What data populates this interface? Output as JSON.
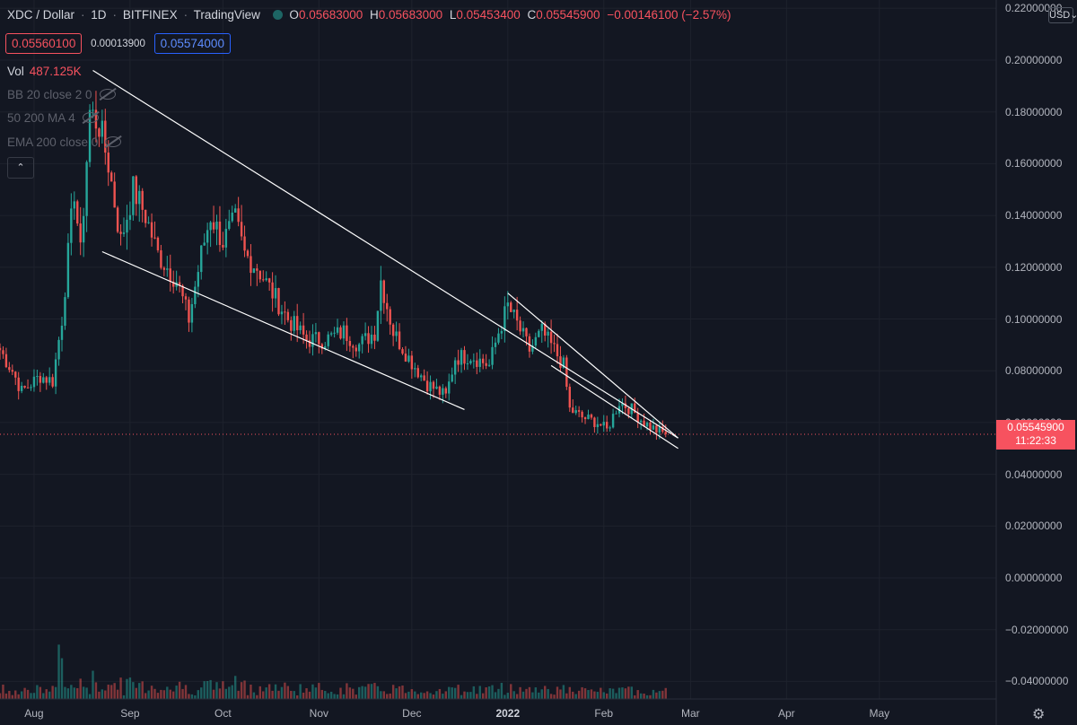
{
  "header": {
    "symbol": "XDC / Dollar",
    "interval": "1D",
    "exchange": "BITFINEX",
    "source": "TradingView",
    "o_label": "O",
    "o_value": "0.05683000",
    "h_label": "H",
    "h_value": "0.05683000",
    "l_label": "L",
    "l_value": "0.05453400",
    "c_label": "C",
    "c_value": "0.05545900",
    "change": "−0.00146100 (−2.57%)"
  },
  "quote": {
    "bid": "0.05560100",
    "spread": "0.00013900",
    "ask": "0.05574000"
  },
  "indicators": {
    "vol_label": "Vol",
    "vol_value": "487.125K",
    "bb": "BB 20 close 2 0",
    "ma": "50 200 MA 4",
    "ema": "EMA 200 close 0"
  },
  "controls": {
    "collapse_icon": "chevron-up-icon",
    "currency": "USD",
    "settings_icon": "gear-icon"
  },
  "current_price": {
    "value": "0.05545900",
    "countdown": "11:22:33"
  },
  "colors": {
    "background": "#131722",
    "up": "#26a69a",
    "down": "#ef5350",
    "trendline": "#ffffff"
  },
  "chart_data": {
    "type": "candlestick",
    "title": "XDC / Dollar · 1D · BITFINEX",
    "y_axis": {
      "ticks": [
        "0.22000000",
        "0.20000000",
        "0.18000000",
        "0.16000000",
        "0.14000000",
        "0.12000000",
        "0.10000000",
        "0.08000000",
        "0.06000000",
        "0.04000000",
        "0.02000000",
        "0.00000000",
        "−0.02000000",
        "−0.04000000"
      ],
      "ylim": [
        -0.045,
        0.22
      ]
    },
    "x_axis": {
      "ticks": [
        "Aug",
        "Sep",
        "Oct",
        "Nov",
        "Dec",
        "2022",
        "Feb",
        "Mar",
        "Apr",
        "May"
      ],
      "range": [
        "2021-07-21",
        "2022-05-31"
      ]
    },
    "grid": true,
    "price_anchors": [
      [
        "2021-07-21",
        0.088
      ],
      [
        "2021-07-25",
        0.08
      ],
      [
        "2021-07-28",
        0.072
      ],
      [
        "2021-08-03",
        0.078
      ],
      [
        "2021-08-07",
        0.076
      ],
      [
        "2021-08-10",
        0.1
      ],
      [
        "2021-08-14",
        0.15
      ],
      [
        "2021-08-16",
        0.125
      ],
      [
        "2021-08-19",
        0.18
      ],
      [
        "2021-08-22",
        0.175
      ],
      [
        "2021-08-25",
        0.16
      ],
      [
        "2021-08-29",
        0.13
      ],
      [
        "2021-09-02",
        0.15
      ],
      [
        "2021-09-06",
        0.14
      ],
      [
        "2021-09-10",
        0.125
      ],
      [
        "2021-09-16",
        0.115
      ],
      [
        "2021-09-20",
        0.1
      ],
      [
        "2021-09-24",
        0.125
      ],
      [
        "2021-09-27",
        0.14
      ],
      [
        "2021-10-01",
        0.13
      ],
      [
        "2021-10-05",
        0.138
      ],
      [
        "2021-10-08",
        0.125
      ],
      [
        "2021-10-12",
        0.12
      ],
      [
        "2021-10-18",
        0.108
      ],
      [
        "2021-10-22",
        0.1
      ],
      [
        "2021-10-28",
        0.092
      ],
      [
        "2021-11-03",
        0.092
      ],
      [
        "2021-11-09",
        0.095
      ],
      [
        "2021-11-14",
        0.09
      ],
      [
        "2021-11-19",
        0.095
      ],
      [
        "2021-11-21",
        0.115
      ],
      [
        "2021-11-25",
        0.095
      ],
      [
        "2021-11-30",
        0.085
      ],
      [
        "2021-12-06",
        0.075
      ],
      [
        "2021-12-12",
        0.07
      ],
      [
        "2021-12-15",
        0.085
      ],
      [
        "2021-12-20",
        0.086
      ],
      [
        "2021-12-26",
        0.082
      ],
      [
        "2021-12-29",
        0.095
      ],
      [
        "2022-01-01",
        0.105
      ],
      [
        "2022-01-04",
        0.098
      ],
      [
        "2022-01-08",
        0.088
      ],
      [
        "2022-01-12",
        0.095
      ],
      [
        "2022-01-16",
        0.088
      ],
      [
        "2022-01-19",
        0.082
      ],
      [
        "2022-01-21",
        0.065
      ],
      [
        "2022-01-25",
        0.062
      ],
      [
        "2022-01-30",
        0.06
      ],
      [
        "2022-02-02",
        0.057
      ],
      [
        "2022-02-06",
        0.068
      ],
      [
        "2022-02-10",
        0.065
      ],
      [
        "2022-02-14",
        0.06
      ],
      [
        "2022-02-18",
        0.057
      ],
      [
        "2022-02-21",
        0.0555
      ]
    ],
    "volume_spikes": [
      [
        "2021-08-09",
        0.02
      ],
      [
        "2021-08-10",
        0.015
      ]
    ],
    "trendlines": [
      {
        "from": [
          "2021-08-20",
          0.196
        ],
        "to": [
          "2022-02-25",
          0.054
        ]
      },
      {
        "from": [
          "2021-08-23",
          0.126
        ],
        "to": [
          "2021-12-18",
          0.065
        ]
      },
      {
        "from": [
          "2022-01-01",
          0.11
        ],
        "to": [
          "2022-02-25",
          0.054
        ]
      },
      {
        "from": [
          "2022-01-15",
          0.082
        ],
        "to": [
          "2022-02-25",
          0.05
        ]
      }
    ],
    "current_price_line": 0.055459
  }
}
